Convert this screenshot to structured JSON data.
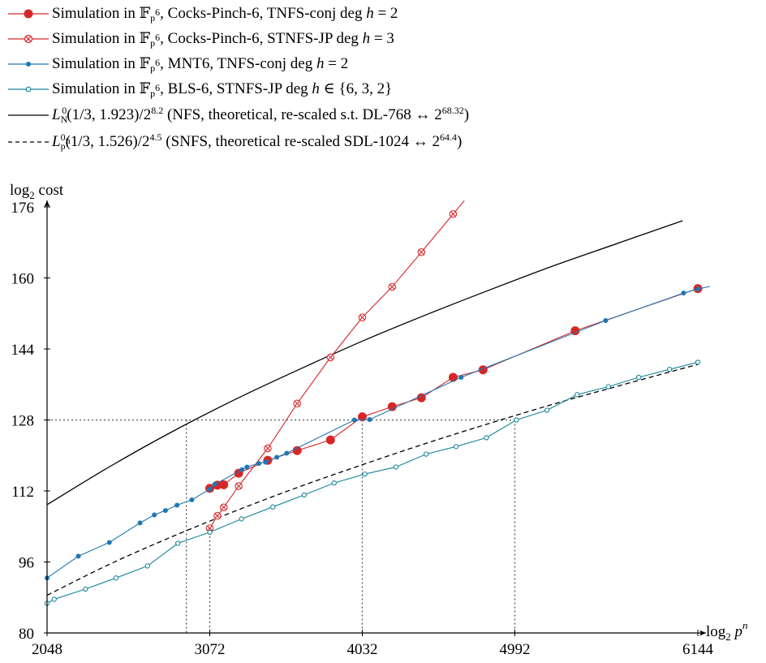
{
  "colors": {
    "cp6_tnfs": "#d62728",
    "cp6_stnfs": "#d62728",
    "mnt6": "#1f77b4",
    "bls6": "#17859a",
    "nfs": "#000000",
    "snfs": "#000000",
    "reference": "#555555"
  },
  "legend": {
    "rows": [
      {
        "series": "cp6_tnfs",
        "text": "Simulation in 𝔽_{p^6}, Cocks-Pinch-6, TNFS-conj deg h = 2"
      },
      {
        "series": "cp6_stnfs",
        "text": "Simulation in 𝔽_{p^6}, Cocks-Pinch-6, STNFS-JP deg h = 3"
      },
      {
        "series": "mnt6",
        "text": "Simulation in 𝔽_{p^6}, MNT6, TNFS-conj deg h = 2"
      },
      {
        "series": "bls6",
        "text": "Simulation in 𝔽_{p^6}, BLS-6, STNFS-JP deg h ∈ {6, 3, 2}"
      },
      {
        "series": "nfs",
        "text": "L_N^0(1/3, 1.923)/2^8.2 (NFS, theoretical, re-scaled s.t. DL-768 ↔ 2^68.32)"
      },
      {
        "series": "snfs",
        "text": "L_{p^n}^0(1/3, 1.526)/2^4.5 (SNFS, theoretical re-scaled SDL-1024 ↔ 2^64.4)"
      }
    ]
  },
  "chart_data": {
    "type": "line",
    "xlabel": "log2 p^n",
    "ylabel": "log2 cost",
    "xlim": [
      2048,
      6144
    ],
    "ylim": [
      80,
      176
    ],
    "xticks": [
      2048,
      3072,
      4032,
      4992,
      6144
    ],
    "yticks": [
      80,
      96,
      112,
      128,
      144,
      160,
      176
    ],
    "grid": false,
    "legend_position": "top",
    "reference_level": 128,
    "reference_x": [
      2925,
      4032,
      4992
    ],
    "series": [
      {
        "key": "cp6_tnfs",
        "name": "Simulation in 𝔽_{p^6}, Cocks-Pinch-6, TNFS-conj deg h = 2",
        "marker": "big-dot",
        "x": [
          3072,
          3120,
          3160,
          3254,
          3437,
          3622,
          3832,
          4032,
          4220,
          4404,
          4604,
          4792,
          5372,
          6144
        ],
        "y": [
          112.6,
          113.3,
          113.4,
          116.0,
          118.9,
          121.1,
          123.5,
          128.7,
          131.0,
          133.0,
          137.6,
          139.3,
          148.1,
          157.6
        ]
      },
      {
        "key": "cp6_stnfs",
        "name": "Simulation in 𝔽_{p^6}, Cocks-Pinch-6, STNFS-JP deg h = 3",
        "marker": "crossed-circle",
        "x": [
          3072,
          3120,
          3160,
          3254,
          3437,
          3622,
          3832,
          4032,
          4220,
          4404,
          4604
        ],
        "y": [
          103.6,
          106.4,
          108.3,
          113.1,
          121.6,
          131.7,
          142.1,
          151.1,
          158.0,
          165.8,
          174.4
        ]
      },
      {
        "key": "mnt6",
        "name": "Simulation in 𝔽_{p^6}, MNT6, TNFS-conj deg h = 2",
        "marker": "small-dot",
        "x": [
          2048,
          2245,
          2440,
          2633,
          2723,
          2793,
          2866,
          2959,
          3072,
          3104,
          3275,
          3306,
          3381,
          3423,
          3494,
          3556,
          3983,
          4078,
          4654,
          5564,
          6054,
          6144
        ],
        "y": [
          92.4,
          97.3,
          100.4,
          104.8,
          106.6,
          107.6,
          108.8,
          110.0,
          112.4,
          113.5,
          116.8,
          117.4,
          118.2,
          118.5,
          119.6,
          120.5,
          128.0,
          128.1,
          137.6,
          150.4,
          156.6,
          157.5
        ],
        "line_tail": [
          6220,
          158.1
        ]
      },
      {
        "key": "bls6",
        "name": "Simulation in 𝔽_{p^6}, BLS-6, STNFS-JP deg h ∈ {6, 3, 2}",
        "marker": "small-circle",
        "x": [
          2048,
          2093,
          2290,
          2482,
          2680,
          2871,
          3072,
          3272,
          3469,
          3666,
          3855,
          4048,
          4244,
          4434,
          4622,
          4813,
          5002,
          5195,
          5384,
          5581,
          5772,
          5966,
          6144
        ],
        "y": [
          86.7,
          87.6,
          89.9,
          92.4,
          95.1,
          100.2,
          102.7,
          105.7,
          108.4,
          111.1,
          113.8,
          115.8,
          117.4,
          120.3,
          122.0,
          124.0,
          128.0,
          130.2,
          133.7,
          135.5,
          137.6,
          139.4,
          141.0
        ]
      },
      {
        "key": "nfs",
        "name": "L_N^0(1/3, 1.923)/2^8.2",
        "marker": "none",
        "style": "solid",
        "x": [
          2048,
          2448,
          2848,
          3248,
          3648,
          4048,
          4448,
          4848,
          5248,
          5648,
          6048
        ],
        "y": [
          108.9,
          117.6,
          125.6,
          132.9,
          139.6,
          146.0,
          151.9,
          157.5,
          162.9,
          167.9,
          172.9
        ]
      },
      {
        "key": "snfs",
        "name": "L_{p^n}^0(1/3, 1.526)/2^4.5",
        "marker": "none",
        "style": "dashed",
        "x": [
          2048,
          2448,
          2848,
          3248,
          3648,
          4048,
          4448,
          4848,
          5248,
          5648,
          6048,
          6144
        ],
        "y": [
          88.5,
          95.6,
          101.9,
          107.7,
          113.1,
          118.1,
          122.9,
          127.4,
          131.7,
          135.7,
          139.6,
          140.5
        ]
      }
    ]
  }
}
